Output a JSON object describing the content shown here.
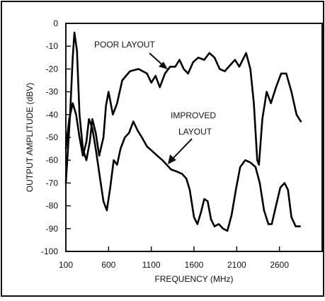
{
  "chart_data": {
    "type": "line",
    "title": "",
    "xlabel": "FREQUENCY (MHz)",
    "ylabel": "OUTPUT AMPLITUDE (dBV)",
    "xlim": [
      100,
      3100
    ],
    "ylim": [
      -100,
      0
    ],
    "x_ticks": [
      100,
      600,
      1100,
      1600,
      2100,
      2600
    ],
    "y_ticks": [
      0,
      -10,
      -20,
      -30,
      -40,
      -50,
      -60,
      -70,
      -80,
      -90,
      -100
    ],
    "grid": false,
    "line_color": "#000000",
    "series": [
      {
        "annotation": "POOR LAYOUT",
        "points": [
          [
            100,
            -70
          ],
          [
            150,
            -40
          ],
          [
            180,
            -15
          ],
          [
            200,
            -4
          ],
          [
            230,
            -12
          ],
          [
            260,
            -40
          ],
          [
            300,
            -55
          ],
          [
            340,
            -60
          ],
          [
            380,
            -52
          ],
          [
            410,
            -42
          ],
          [
            450,
            -48
          ],
          [
            490,
            -58
          ],
          [
            540,
            -50
          ],
          [
            570,
            -36
          ],
          [
            600,
            -30
          ],
          [
            650,
            -40
          ],
          [
            700,
            -35
          ],
          [
            760,
            -25
          ],
          [
            850,
            -21
          ],
          [
            950,
            -20
          ],
          [
            1050,
            -22
          ],
          [
            1100,
            -26
          ],
          [
            1150,
            -23
          ],
          [
            1200,
            -28
          ],
          [
            1260,
            -22
          ],
          [
            1320,
            -19
          ],
          [
            1380,
            -19
          ],
          [
            1430,
            -16
          ],
          [
            1480,
            -20
          ],
          [
            1530,
            -22
          ],
          [
            1590,
            -17
          ],
          [
            1650,
            -15
          ],
          [
            1720,
            -16
          ],
          [
            1780,
            -13
          ],
          [
            1840,
            -15
          ],
          [
            1900,
            -20
          ],
          [
            1960,
            -21
          ],
          [
            2030,
            -18
          ],
          [
            2080,
            -16
          ],
          [
            2130,
            -19
          ],
          [
            2170,
            -16
          ],
          [
            2210,
            -13
          ],
          [
            2260,
            -20
          ],
          [
            2300,
            -35
          ],
          [
            2340,
            -60
          ],
          [
            2360,
            -62
          ],
          [
            2400,
            -42
          ],
          [
            2450,
            -30
          ],
          [
            2500,
            -35
          ],
          [
            2560,
            -28
          ],
          [
            2620,
            -22
          ],
          [
            2680,
            -22
          ],
          [
            2740,
            -30
          ],
          [
            2800,
            -40
          ],
          [
            2850,
            -43
          ]
        ]
      },
      {
        "annotation": "IMPROVED\nLAYOUT",
        "points": [
          [
            100,
            -55
          ],
          [
            140,
            -42
          ],
          [
            180,
            -35
          ],
          [
            220,
            -40
          ],
          [
            260,
            -50
          ],
          [
            300,
            -58
          ],
          [
            340,
            -52
          ],
          [
            370,
            -42
          ],
          [
            410,
            -46
          ],
          [
            450,
            -55
          ],
          [
            500,
            -68
          ],
          [
            540,
            -78
          ],
          [
            580,
            -82
          ],
          [
            620,
            -72
          ],
          [
            660,
            -60
          ],
          [
            700,
            -62
          ],
          [
            740,
            -55
          ],
          [
            790,
            -50
          ],
          [
            840,
            -48
          ],
          [
            890,
            -43
          ],
          [
            940,
            -47
          ],
          [
            990,
            -50
          ],
          [
            1050,
            -54
          ],
          [
            1110,
            -56
          ],
          [
            1170,
            -58
          ],
          [
            1230,
            -60
          ],
          [
            1280,
            -62
          ],
          [
            1330,
            -64
          ],
          [
            1400,
            -65
          ],
          [
            1460,
            -66
          ],
          [
            1510,
            -68
          ],
          [
            1550,
            -73
          ],
          [
            1600,
            -85
          ],
          [
            1640,
            -88
          ],
          [
            1680,
            -83
          ],
          [
            1720,
            -77
          ],
          [
            1760,
            -78
          ],
          [
            1800,
            -86
          ],
          [
            1840,
            -89
          ],
          [
            1890,
            -88
          ],
          [
            1940,
            -90
          ],
          [
            1990,
            -91
          ],
          [
            2040,
            -84
          ],
          [
            2090,
            -73
          ],
          [
            2140,
            -63
          ],
          [
            2200,
            -60
          ],
          [
            2260,
            -61
          ],
          [
            2320,
            -63
          ],
          [
            2370,
            -70
          ],
          [
            2420,
            -82
          ],
          [
            2470,
            -88
          ],
          [
            2510,
            -88
          ],
          [
            2560,
            -80
          ],
          [
            2610,
            -72
          ],
          [
            2660,
            -70
          ],
          [
            2700,
            -73
          ],
          [
            2740,
            -85
          ],
          [
            2790,
            -89
          ],
          [
            2840,
            -89
          ]
        ]
      }
    ]
  }
}
